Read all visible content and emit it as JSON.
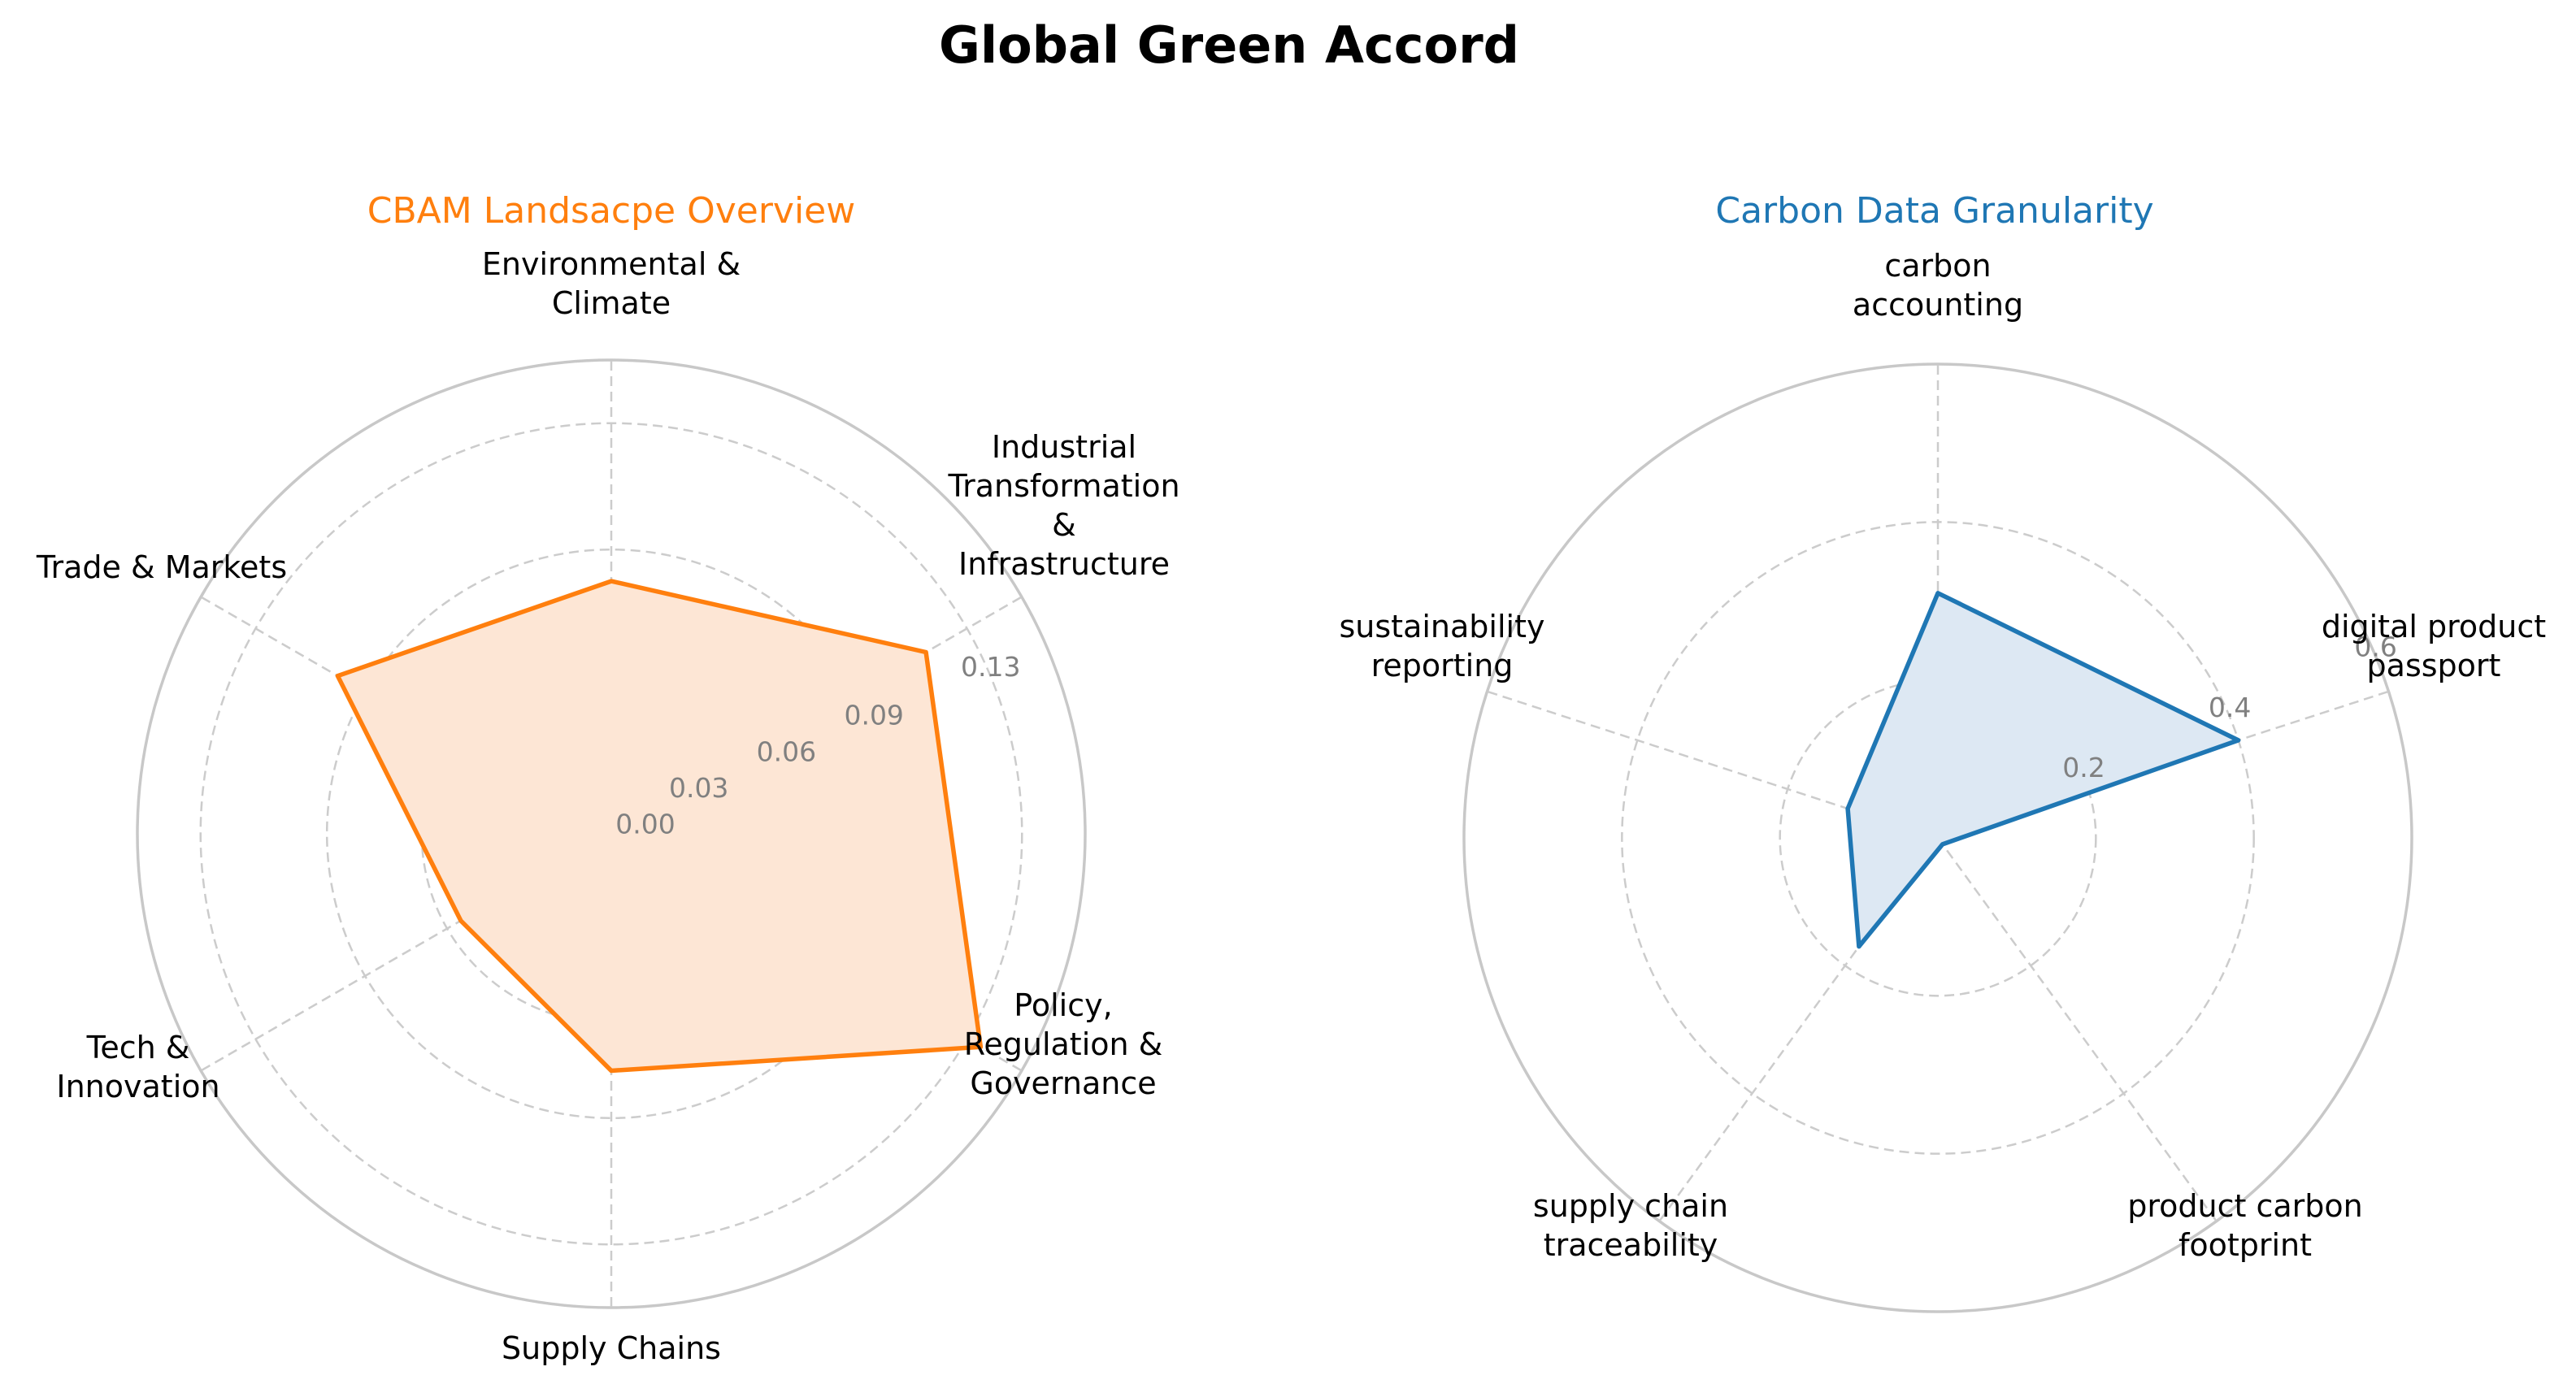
{
  "figure": {
    "title": "Global Green Accord"
  },
  "chart_data": [
    {
      "type": "radar",
      "title": "CBAM Landsacpe Overview",
      "color": "#ff7f0e",
      "fill_color": "#fde6d5",
      "categories": [
        "Environmental & Climate",
        "Industrial Transformation & Infrastructure",
        "Policy, Regulation & Governance",
        "Supply Chains",
        "Tech & Innovation",
        "Trade & Markets"
      ],
      "values": [
        0.08,
        0.115,
        0.135,
        0.075,
        0.055,
        0.1
      ],
      "rlim": [
        0,
        0.15
      ],
      "rticks": [
        0.0,
        0.03,
        0.06,
        0.09,
        0.13
      ],
      "rtick_labels": [
        "0.00",
        "0.03",
        "0.06",
        "0.09",
        "0.13"
      ],
      "grid": true
    },
    {
      "type": "radar",
      "title": "Carbon Data Granularity",
      "color": "#1f77b4",
      "fill_color": "#dde8f3",
      "categories": [
        "carbon accounting",
        "digital product passport",
        "product carbon footprint",
        "supply chain traceability",
        "sustainability reporting"
      ],
      "values": [
        0.31,
        0.4,
        0.01,
        0.17,
        0.12
      ],
      "rlim": [
        0,
        0.6
      ],
      "rticks": [
        0.2,
        0.4,
        0.6
      ],
      "rtick_labels": [
        "0.2",
        "0.4",
        "0.6"
      ],
      "grid": true
    }
  ]
}
